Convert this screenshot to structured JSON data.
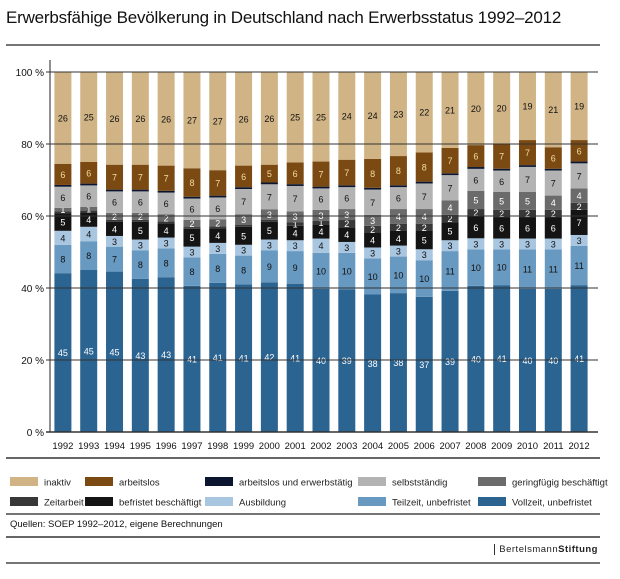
{
  "chart_data": {
    "type": "bar",
    "stacked": true,
    "title": "Erwerbsfähige Bevölkerung in Deutschland nach Erwerbsstatus 1992–2012",
    "categories": [
      "1992",
      "1993",
      "1994",
      "1995",
      "1996",
      "1997",
      "1998",
      "1999",
      "2000",
      "2001",
      "2002",
      "2003",
      "2004",
      "2005",
      "2006",
      "2007",
      "2008",
      "2009",
      "2010",
      "2011",
      "2012"
    ],
    "ylim": [
      0,
      100
    ],
    "yticks": [
      "0 %",
      "20 %",
      "40 %",
      "60 %",
      "80 %",
      "100 %"
    ],
    "grid": true,
    "legend_position": "bottom",
    "series": [
      {
        "name": "Vollzeit, unbefristet",
        "color": "#2b6391",
        "text": "#fff",
        "values": [
          45,
          45,
          45,
          43,
          43,
          41,
          41,
          41,
          42,
          41,
          40,
          39,
          38,
          38,
          37,
          39,
          40,
          41,
          40,
          40,
          41
        ]
      },
      {
        "name": "Teilzeit, unbefristet",
        "color": "#6899c1",
        "text": "#111",
        "values": [
          8,
          8,
          7,
          8,
          8,
          8,
          8,
          8,
          9,
          9,
          10,
          10,
          10,
          10,
          10,
          11,
          10,
          10,
          11,
          11,
          11
        ]
      },
      {
        "name": "Ausbildung",
        "color": "#a9c6e0",
        "text": "#111",
        "values": [
          4,
          4,
          3,
          3,
          3,
          3,
          3,
          3,
          3,
          3,
          4,
          3,
          3,
          3,
          3,
          3,
          3,
          3,
          3,
          3,
          3
        ]
      },
      {
        "name": "befristet beschäftigt",
        "color": "#141414",
        "text": "#fff",
        "values": [
          5,
          4,
          4,
          5,
          4,
          5,
          4,
          5,
          5,
          4,
          4,
          4,
          4,
          4,
          5,
          5,
          6,
          6,
          6,
          6,
          7
        ]
      },
      {
        "name": "Zeitarbeit",
        "color": "#383838",
        "text": "#fff",
        "values": [
          0.5,
          0.5,
          0.5,
          0.5,
          0.5,
          0.5,
          0.5,
          0.5,
          0.5,
          1,
          1,
          2,
          2,
          2,
          2,
          2,
          2,
          2,
          2,
          2,
          2
        ]
      },
      {
        "name": "geringfügig beschäftigt",
        "color": "#6b6b6b",
        "text": "#fff",
        "values": [
          1,
          1,
          2,
          2,
          2,
          2,
          2,
          3,
          3,
          3,
          3,
          3,
          3,
          4,
          4,
          4,
          5,
          5,
          5,
          4,
          4
        ]
      },
      {
        "name": "selbstständig",
        "color": "#b3b3b3",
        "text": "#111",
        "values": [
          6,
          6,
          6,
          6,
          6,
          6,
          6,
          7,
          7,
          7,
          6,
          6,
          7,
          6,
          7,
          7,
          6,
          6,
          7,
          7,
          7
        ]
      },
      {
        "name": "arbeitslos und erwerbstätig",
        "color": "#0b1530",
        "text": "#fff",
        "values": [
          0.5,
          0.5,
          0.5,
          0.5,
          0.5,
          0.5,
          0.5,
          0.5,
          0.5,
          0.5,
          0.5,
          0.5,
          0.5,
          0.5,
          0.5,
          0.5,
          0.5,
          0.5,
          0.5,
          0.5,
          0.5
        ]
      },
      {
        "name": "arbeitslos",
        "color": "#7a4a12",
        "text": "#f3dca0",
        "values": [
          6,
          6,
          7,
          7,
          7,
          8,
          7,
          6,
          5,
          6,
          7,
          7,
          8,
          8,
          8,
          7,
          6,
          7,
          7,
          6,
          6
        ]
      },
      {
        "name": "inaktiv",
        "color": "#d1b485",
        "text": "#111",
        "values": [
          26,
          25,
          26,
          26,
          26,
          27,
          27,
          26,
          26,
          25,
          25,
          24,
          24,
          23,
          22,
          21,
          20,
          20,
          19,
          21,
          19
        ]
      }
    ],
    "legend_order": [
      "inaktiv",
      "arbeitslos",
      "arbeitslos und erwerbstätig",
      "selbstständig",
      "geringfügig beschäftigt",
      "Zeitarbeit",
      "befristet beschäftigt",
      "Ausbildung",
      "Teilzeit, unbefristet",
      "Vollzeit, unbefristet"
    ]
  },
  "source": "Quellen: SOEP 1992–2012, eigene Berechnungen",
  "brand": {
    "part1": "Bertelsmann",
    "part2": "Stiftung"
  }
}
